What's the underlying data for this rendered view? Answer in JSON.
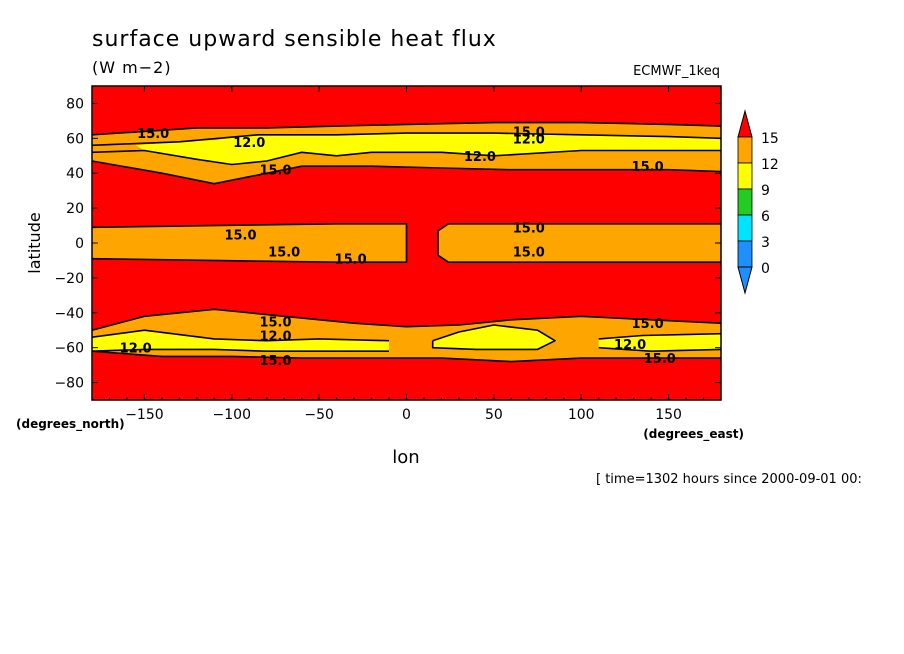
{
  "chart_data": {
    "type": "heatmap",
    "title": "surface upward sensible heat flux",
    "units": "(W m−2)",
    "dataset": "ECMWF_1keq",
    "xlabel": "lon",
    "ylabel": "latitude",
    "x_unit_label": "(degrees_east)",
    "y_unit_label": "(degrees_north)",
    "time_label": "[ time=1302 hours since 2000-09-01 00:",
    "xlim": [
      -180,
      180
    ],
    "ylim": [
      -90,
      90
    ],
    "xticks": [
      -150,
      -100,
      -50,
      0,
      50,
      100,
      150
    ],
    "xtick_labels": [
      "−150",
      "−100",
      "−50",
      "0",
      "50",
      "100",
      "150"
    ],
    "yticks": [
      80,
      60,
      40,
      20,
      0,
      -20,
      -40,
      -60,
      -80
    ],
    "ytick_labels": [
      "80",
      "60",
      "40",
      "20",
      "0",
      "−20",
      "−40",
      "−60",
      "−80"
    ],
    "colorbar": {
      "levels": [
        0,
        3,
        6,
        9,
        12,
        15
      ],
      "labels": [
        "0",
        "3",
        "6",
        "9",
        "12",
        "15"
      ],
      "colors": [
        "#1f8fff",
        "#00e5ff",
        "#22cc22",
        "#ffff00",
        "#ffa500",
        "#ff0000"
      ],
      "extend": "both"
    },
    "contour_labels": [
      {
        "lon": -145,
        "lat": 63,
        "text": "15.0"
      },
      {
        "lon": -90,
        "lat": 58,
        "text": "12.0"
      },
      {
        "lon": -75,
        "lat": 42,
        "text": "15.0"
      },
      {
        "lon": 70,
        "lat": 64,
        "text": "15.0"
      },
      {
        "lon": 70,
        "lat": 60,
        "text": "12.0"
      },
      {
        "lon": 42,
        "lat": 50,
        "text": "12.0"
      },
      {
        "lon": 138,
        "lat": 44,
        "text": "15.0"
      },
      {
        "lon": -95,
        "lat": 5,
        "text": "15.0"
      },
      {
        "lon": -70,
        "lat": -5,
        "text": "15.0"
      },
      {
        "lon": -32,
        "lat": -9,
        "text": "15.0"
      },
      {
        "lon": 70,
        "lat": 9,
        "text": "15.0"
      },
      {
        "lon": 70,
        "lat": -5,
        "text": "15.0"
      },
      {
        "lon": -75,
        "lat": -45,
        "text": "15.0"
      },
      {
        "lon": -75,
        "lat": -53,
        "text": "12.0"
      },
      {
        "lon": -155,
        "lat": -60,
        "text": "12.0"
      },
      {
        "lon": 138,
        "lat": -46,
        "text": "15.0"
      },
      {
        "lon": 128,
        "lat": -58,
        "text": "12.0"
      },
      {
        "lon": -75,
        "lat": -67,
        "text": "15.0"
      },
      {
        "lon": 145,
        "lat": -66,
        "text": "15.0"
      }
    ],
    "fill_regions": [
      {
        "level": "15+",
        "color": "#ff0000",
        "polygons": [
          [
            [
              -180,
              90
            ],
            [
              180,
              90
            ],
            [
              180,
              -90
            ],
            [
              -180,
              -90
            ]
          ]
        ]
      },
      {
        "level": "12-15",
        "color": "#ffa500",
        "polygons": [
          [
            [
              -180,
              62
            ],
            [
              -150,
              64
            ],
            [
              -120,
              66
            ],
            [
              -80,
              66
            ],
            [
              -40,
              67
            ],
            [
              0,
              68
            ],
            [
              50,
              69
            ],
            [
              100,
              69
            ],
            [
              150,
              68
            ],
            [
              180,
              67
            ],
            [
              180,
              41
            ],
            [
              150,
              42
            ],
            [
              100,
              42
            ],
            [
              60,
              42
            ],
            [
              20,
              43
            ],
            [
              -20,
              44
            ],
            [
              -60,
              44
            ],
            [
              -90,
              38
            ],
            [
              -110,
              34
            ],
            [
              -140,
              40
            ],
            [
              -180,
              47
            ]
          ],
          [
            [
              -180,
              9
            ],
            [
              -40,
              11
            ],
            [
              0,
              11
            ],
            [
              0,
              -11
            ],
            [
              -40,
              -11
            ],
            [
              -180,
              -9
            ]
          ],
          [
            [
              24,
              11
            ],
            [
              180,
              11
            ],
            [
              180,
              -11
            ],
            [
              24,
              -11
            ],
            [
              18,
              -7
            ],
            [
              18,
              7
            ]
          ],
          [
            [
              -180,
              -50
            ],
            [
              -150,
              -42
            ],
            [
              -110,
              -38
            ],
            [
              -70,
              -42
            ],
            [
              -30,
              -46
            ],
            [
              0,
              -48
            ],
            [
              30,
              -47
            ],
            [
              60,
              -44
            ],
            [
              100,
              -42
            ],
            [
              140,
              -44
            ],
            [
              180,
              -46
            ],
            [
              180,
              -66
            ],
            [
              140,
              -66
            ],
            [
              100,
              -66
            ],
            [
              60,
              -68
            ],
            [
              20,
              -66
            ],
            [
              -20,
              -66
            ],
            [
              -60,
              -66
            ],
            [
              -100,
              -65
            ],
            [
              -140,
              -65
            ],
            [
              -180,
              -62
            ]
          ]
        ]
      },
      {
        "level": "9-12",
        "color": "#ffff00",
        "polygons": [
          [
            [
              -155,
              56
            ],
            [
              -130,
              58
            ],
            [
              -110,
              59
            ],
            [
              -85,
              62
            ],
            [
              -40,
              62
            ],
            [
              0,
              63
            ],
            [
              50,
              63
            ],
            [
              100,
              62
            ],
            [
              150,
              61
            ],
            [
              180,
              60
            ],
            [
              180,
              53
            ],
            [
              140,
              53
            ],
            [
              100,
              53
            ],
            [
              50,
              50
            ],
            [
              20,
              52
            ],
            [
              -20,
              52
            ],
            [
              -40,
              50
            ],
            [
              -60,
              52
            ],
            [
              -80,
              47
            ],
            [
              -100,
              45
            ],
            [
              -120,
              48
            ],
            [
              -150,
              53
            ]
          ],
          [
            [
              -185,
              -54
            ],
            [
              -150,
              -50
            ],
            [
              -110,
              -55
            ],
            [
              -80,
              -56
            ],
            [
              -50,
              -55
            ],
            [
              -10,
              -56
            ],
            [
              -10,
              -62
            ],
            [
              -50,
              -62
            ],
            [
              -80,
              -62
            ],
            [
              -110,
              -61
            ],
            [
              -150,
              -61
            ],
            [
              -185,
              -62
            ]
          ],
          [
            [
              15,
              -56
            ],
            [
              30,
              -51
            ],
            [
              50,
              -47
            ],
            [
              75,
              -50
            ],
            [
              85,
              -56
            ],
            [
              75,
              -61
            ],
            [
              40,
              -61
            ],
            [
              15,
              -60
            ]
          ],
          [
            [
              110,
              -55
            ],
            [
              135,
              -53
            ],
            [
              185,
              -52
            ],
            [
              185,
              -61
            ],
            [
              140,
              -62
            ],
            [
              110,
              -60
            ]
          ]
        ]
      }
    ],
    "contour_lines": [
      {
        "label": "15.0",
        "points": [
          [
            -180,
            62
          ],
          [
            -150,
            64
          ],
          [
            -120,
            66
          ],
          [
            -80,
            66
          ],
          [
            -40,
            67
          ],
          [
            0,
            68
          ],
          [
            50,
            69
          ],
          [
            100,
            69
          ],
          [
            150,
            68
          ],
          [
            180,
            67
          ]
        ]
      },
      {
        "label": "15.0",
        "points": [
          [
            -180,
            47
          ],
          [
            -140,
            40
          ],
          [
            -110,
            34
          ],
          [
            -90,
            38
          ],
          [
            -60,
            44
          ],
          [
            -20,
            44
          ],
          [
            20,
            43
          ],
          [
            60,
            42
          ],
          [
            100,
            42
          ],
          [
            150,
            42
          ],
          [
            180,
            41
          ]
        ]
      },
      {
        "label": "12.0",
        "points": [
          [
            -180,
            56
          ],
          [
            -130,
            58
          ],
          [
            -85,
            62
          ],
          [
            -40,
            62
          ],
          [
            0,
            63
          ],
          [
            50,
            63
          ],
          [
            100,
            62
          ],
          [
            150,
            61
          ],
          [
            180,
            60
          ]
        ]
      },
      {
        "label": "12.0",
        "points": [
          [
            -180,
            52
          ],
          [
            -150,
            53
          ],
          [
            -120,
            48
          ],
          [
            -100,
            45
          ],
          [
            -80,
            47
          ],
          [
            -60,
            52
          ],
          [
            -40,
            50
          ],
          [
            -20,
            52
          ],
          [
            20,
            52
          ],
          [
            50,
            50
          ],
          [
            100,
            53
          ],
          [
            140,
            53
          ],
          [
            180,
            53
          ]
        ]
      },
      {
        "label": "15.0",
        "points": [
          [
            -180,
            9
          ],
          [
            -40,
            11
          ],
          [
            0,
            11
          ],
          [
            0,
            -11
          ],
          [
            -40,
            -11
          ],
          [
            -180,
            -9
          ]
        ]
      },
      {
        "label": "15.0",
        "points": [
          [
            180,
            11
          ],
          [
            24,
            11
          ],
          [
            18,
            7
          ],
          [
            18,
            -7
          ],
          [
            24,
            -11
          ],
          [
            180,
            -11
          ]
        ]
      },
      {
        "label": "15.0",
        "points": [
          [
            -180,
            -50
          ],
          [
            -150,
            -42
          ],
          [
            -110,
            -38
          ],
          [
            -70,
            -42
          ],
          [
            -30,
            -46
          ],
          [
            0,
            -48
          ],
          [
            30,
            -47
          ],
          [
            60,
            -44
          ],
          [
            100,
            -42
          ],
          [
            140,
            -44
          ],
          [
            180,
            -46
          ]
        ]
      },
      {
        "label": "15.0",
        "points": [
          [
            -180,
            -62
          ],
          [
            -140,
            -65
          ],
          [
            -100,
            -65
          ],
          [
            -60,
            -66
          ],
          [
            -20,
            -66
          ],
          [
            20,
            -66
          ],
          [
            60,
            -68
          ],
          [
            100,
            -66
          ],
          [
            140,
            -66
          ],
          [
            180,
            -66
          ]
        ]
      },
      {
        "label": "12.0",
        "points": [
          [
            -180,
            -54
          ],
          [
            -150,
            -50
          ],
          [
            -110,
            -55
          ],
          [
            -80,
            -56
          ],
          [
            -50,
            -55
          ],
          [
            -10,
            -56
          ]
        ]
      },
      {
        "label": "12.0",
        "points": [
          [
            -180,
            -62
          ],
          [
            -150,
            -61
          ],
          [
            -110,
            -61
          ],
          [
            -80,
            -62
          ],
          [
            -50,
            -62
          ],
          [
            -10,
            -62
          ]
        ]
      },
      {
        "label": "12.0",
        "points": [
          [
            15,
            -56
          ],
          [
            30,
            -51
          ],
          [
            50,
            -47
          ],
          [
            75,
            -50
          ],
          [
            85,
            -56
          ],
          [
            75,
            -61
          ],
          [
            40,
            -61
          ],
          [
            15,
            -60
          ],
          [
            15,
            -56
          ]
        ]
      },
      {
        "label": "12.0",
        "points": [
          [
            110,
            -55
          ],
          [
            135,
            -53
          ],
          [
            180,
            -52
          ]
        ]
      },
      {
        "label": "12.0",
        "points": [
          [
            110,
            -60
          ],
          [
            140,
            -62
          ],
          [
            180,
            -61
          ]
        ]
      }
    ]
  }
}
